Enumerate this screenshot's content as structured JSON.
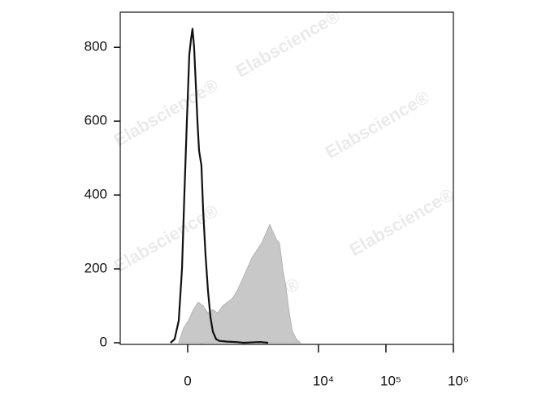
{
  "chart_data": {
    "type": "line",
    "watermark": "Elabscience®",
    "xscale": "biexponential",
    "xlim": [
      -1137,
      1000000
    ],
    "xticks": [
      0,
      {
        "value": 10000,
        "label": "10⁴"
      },
      {
        "value": 100000,
        "label": "10⁵"
      },
      {
        "value": 1000000,
        "label": "10⁶"
      }
    ],
    "ylim": [
      0,
      895
    ],
    "yticks": [
      0,
      200,
      400,
      600,
      800
    ],
    "series": [
      {
        "color": "#b4b4b4",
        "fill": "#c8c8c8",
        "x": [
          -71,
          -32,
          6,
          45,
          85,
          127,
          173,
          223,
          280,
          346,
          419,
          504,
          599,
          720,
          856,
          1017,
          1205,
          1427,
          1689,
          1888,
          2111,
          2362,
          2640,
          2947,
          3294,
          3682,
          4117,
          4720,
          5418
        ],
        "values": [
          0,
          40,
          60,
          90,
          110,
          100,
          80,
          90,
          80,
          100,
          110,
          120,
          140,
          170,
          200,
          230,
          250,
          270,
          300,
          320,
          300,
          280,
          270,
          200,
          150,
          80,
          30,
          10,
          0
        ]
      },
      {
        "color": "#111111",
        "x": [
          -142,
          -106,
          -71,
          -45,
          -26,
          -6,
          13,
          26,
          38,
          51,
          65,
          78,
          92,
          112,
          127,
          149,
          173,
          197,
          223,
          260,
          301,
          419,
          568,
          764,
          1348,
          1785
        ],
        "values": [
          0,
          10,
          60,
          200,
          400,
          600,
          780,
          820,
          850,
          800,
          700,
          600,
          520,
          480,
          360,
          240,
          140,
          70,
          30,
          10,
          5,
          3,
          2,
          0,
          2,
          0
        ]
      }
    ]
  }
}
